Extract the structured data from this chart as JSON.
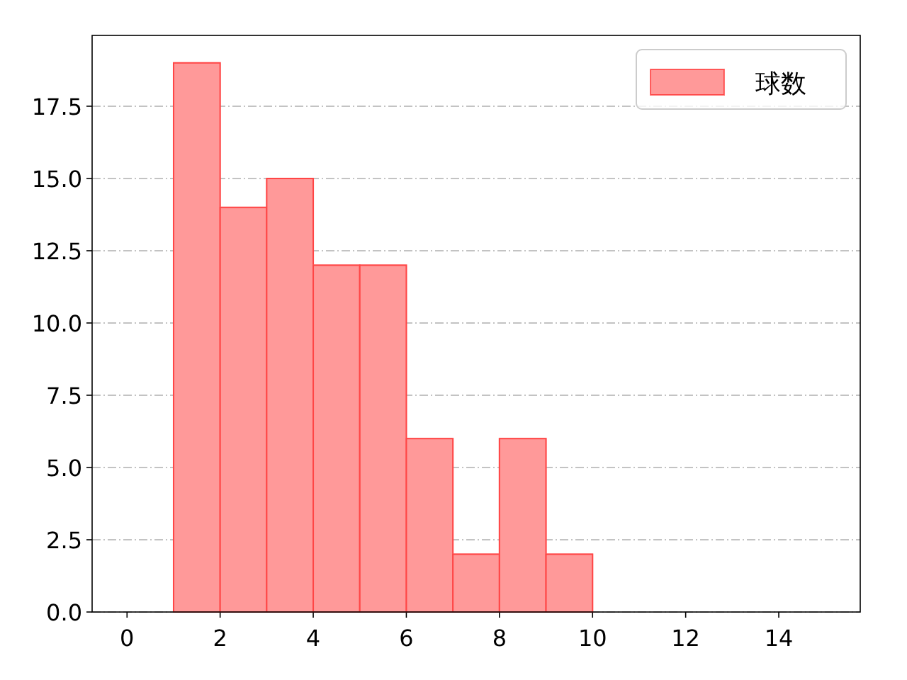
{
  "chart_data": {
    "type": "histogram",
    "bins": [
      1,
      2,
      3,
      4,
      5,
      6,
      7,
      8,
      9,
      10
    ],
    "series": [
      {
        "name": "球数",
        "color": "#ff9999",
        "values": [
          19,
          14,
          15,
          12,
          12,
          6,
          2,
          6,
          2
        ]
      }
    ],
    "xlim": [
      -0.75,
      15.75
    ],
    "xticks": [
      0,
      2,
      4,
      6,
      8,
      10,
      12,
      14
    ],
    "ylim": [
      0,
      19.95
    ],
    "yticks": [
      {
        "value": 0,
        "label": "0.0"
      },
      2.5,
      {
        "value": 5,
        "label": "5.0"
      },
      7.5,
      {
        "value": 10,
        "label": "10.0"
      },
      12.5,
      {
        "value": 15,
        "label": "15.0"
      },
      17.5
    ],
    "grid": "y",
    "legend": "top right"
  }
}
